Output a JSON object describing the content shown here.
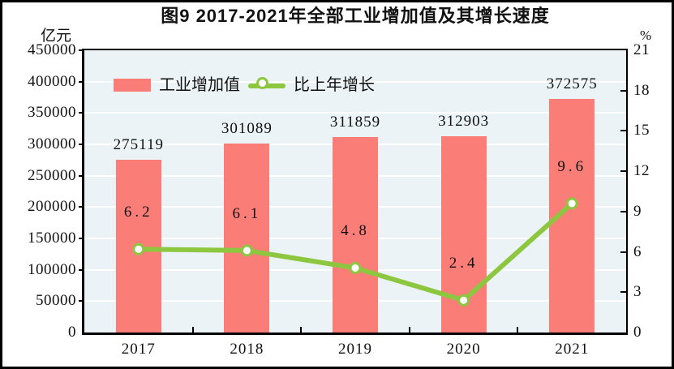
{
  "figure": {
    "title": "图9  2017-2021年全部工业增加值及其增长速度"
  },
  "chart_data": {
    "type": "bar+line",
    "title": "图9  2017-2021年全部工业增加值及其增长速度",
    "categories": [
      "2017",
      "2018",
      "2019",
      "2020",
      "2021"
    ],
    "series": [
      {
        "name": "工业增加值",
        "type": "bar",
        "axis": "left",
        "color": "#fb7d78",
        "values": [
          275119,
          301089,
          311859,
          312903,
          372575
        ]
      },
      {
        "name": "比上年增长",
        "type": "line",
        "axis": "right",
        "color": "#8dc63f",
        "marker": "white-circle",
        "values": [
          6.2,
          6.1,
          4.8,
          2.4,
          9.6
        ]
      }
    ],
    "left_axis": {
      "unit": "亿元",
      "min": 0,
      "max": 450000,
      "step": 50000,
      "tick_labels": [
        "0",
        "50000",
        "100000",
        "150000",
        "200000",
        "250000",
        "300000",
        "350000",
        "400000",
        "450000"
      ]
    },
    "right_axis": {
      "unit": "%",
      "min": 0,
      "max": 21,
      "step": 3,
      "tick_labels": [
        "0",
        "3",
        "6",
        "9",
        "12",
        "15",
        "18",
        "21"
      ]
    },
    "grid": "horizontal white lines at left-axis steps",
    "legend_position": "top-left inside plot",
    "plot_bg": "#ebf3f7"
  }
}
